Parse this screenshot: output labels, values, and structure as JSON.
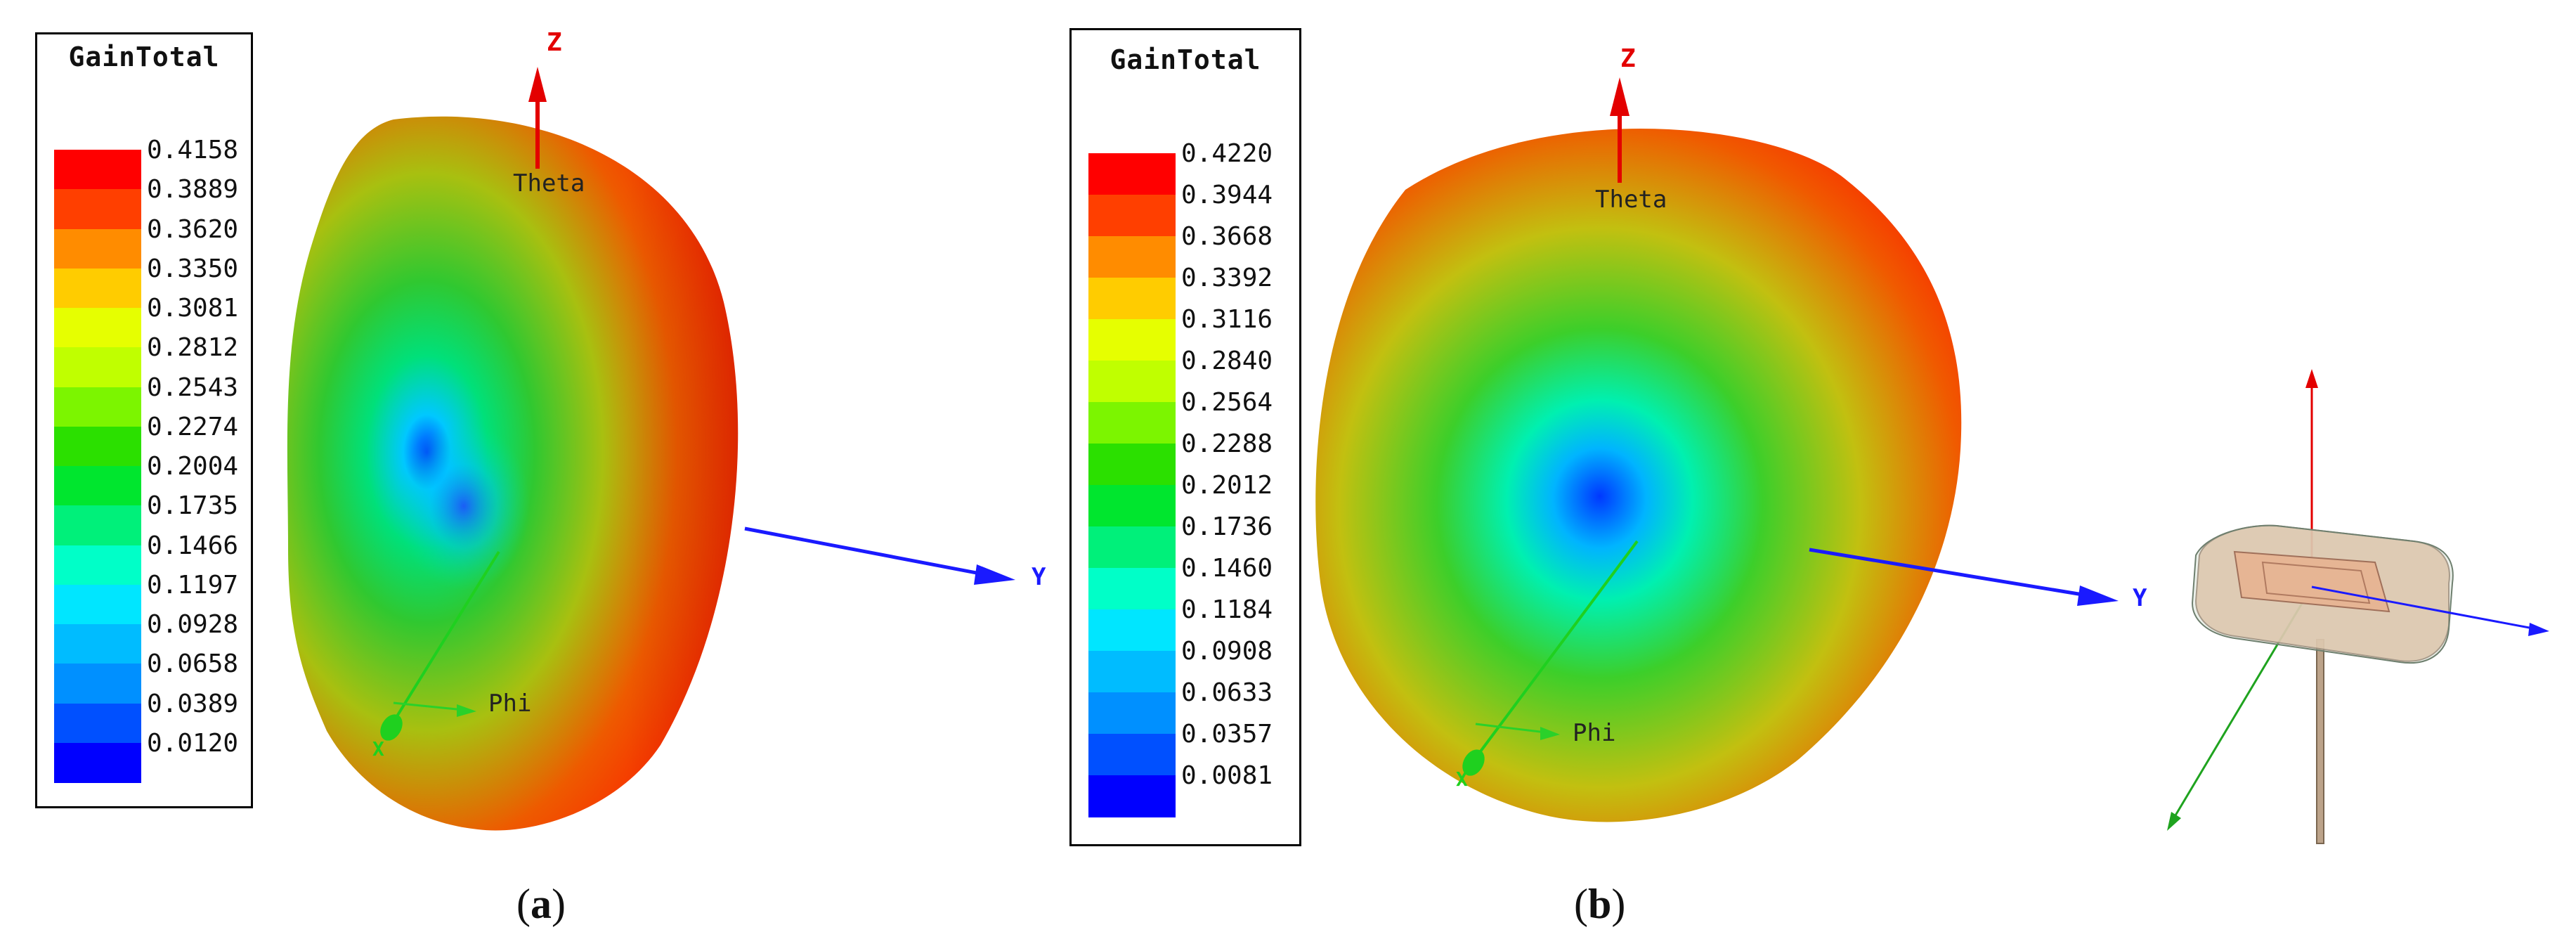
{
  "panels": [
    {
      "id": "a",
      "caption_letter": "a",
      "legend": {
        "title": "GainTotal",
        "values": [
          "0.4158",
          "0.3889",
          "0.3620",
          "0.3350",
          "0.3081",
          "0.2812",
          "0.2543",
          "0.2274",
          "0.2004",
          "0.1735",
          "0.1466",
          "0.1197",
          "0.0928",
          "0.0658",
          "0.0389",
          "0.0120"
        ]
      },
      "axes": {
        "z": "Z",
        "y": "Y",
        "x": "X",
        "theta": "Theta",
        "phi": "Phi"
      }
    },
    {
      "id": "b",
      "caption_letter": "b",
      "legend": {
        "title": "GainTotal",
        "values": [
          "0.4220",
          "0.3944",
          "0.3668",
          "0.3392",
          "0.3116",
          "0.2840",
          "0.2564",
          "0.2288",
          "0.2012",
          "0.1736",
          "0.1460",
          "0.1184",
          "0.0908",
          "0.0633",
          "0.0357",
          "0.0081"
        ]
      },
      "axes": {
        "z": "Z",
        "y": "Y",
        "x": "X",
        "theta": "Theta",
        "phi": "Phi"
      }
    }
  ],
  "colors": {
    "scale": [
      "#ff0000",
      "#ff3f00",
      "#ff8c00",
      "#ffcc00",
      "#e6ff00",
      "#c0ff00",
      "#7cf500",
      "#2be000",
      "#00e62e",
      "#00f07a",
      "#00ffc8",
      "#00e6ff",
      "#00bcff",
      "#0090ff",
      "#0050ff",
      "#0000ff"
    ],
    "z_axis": "#e30000",
    "y_axis": "#1a1aff",
    "x_axis": "#1fd01f",
    "phi_axis": "#2ad12a"
  }
}
